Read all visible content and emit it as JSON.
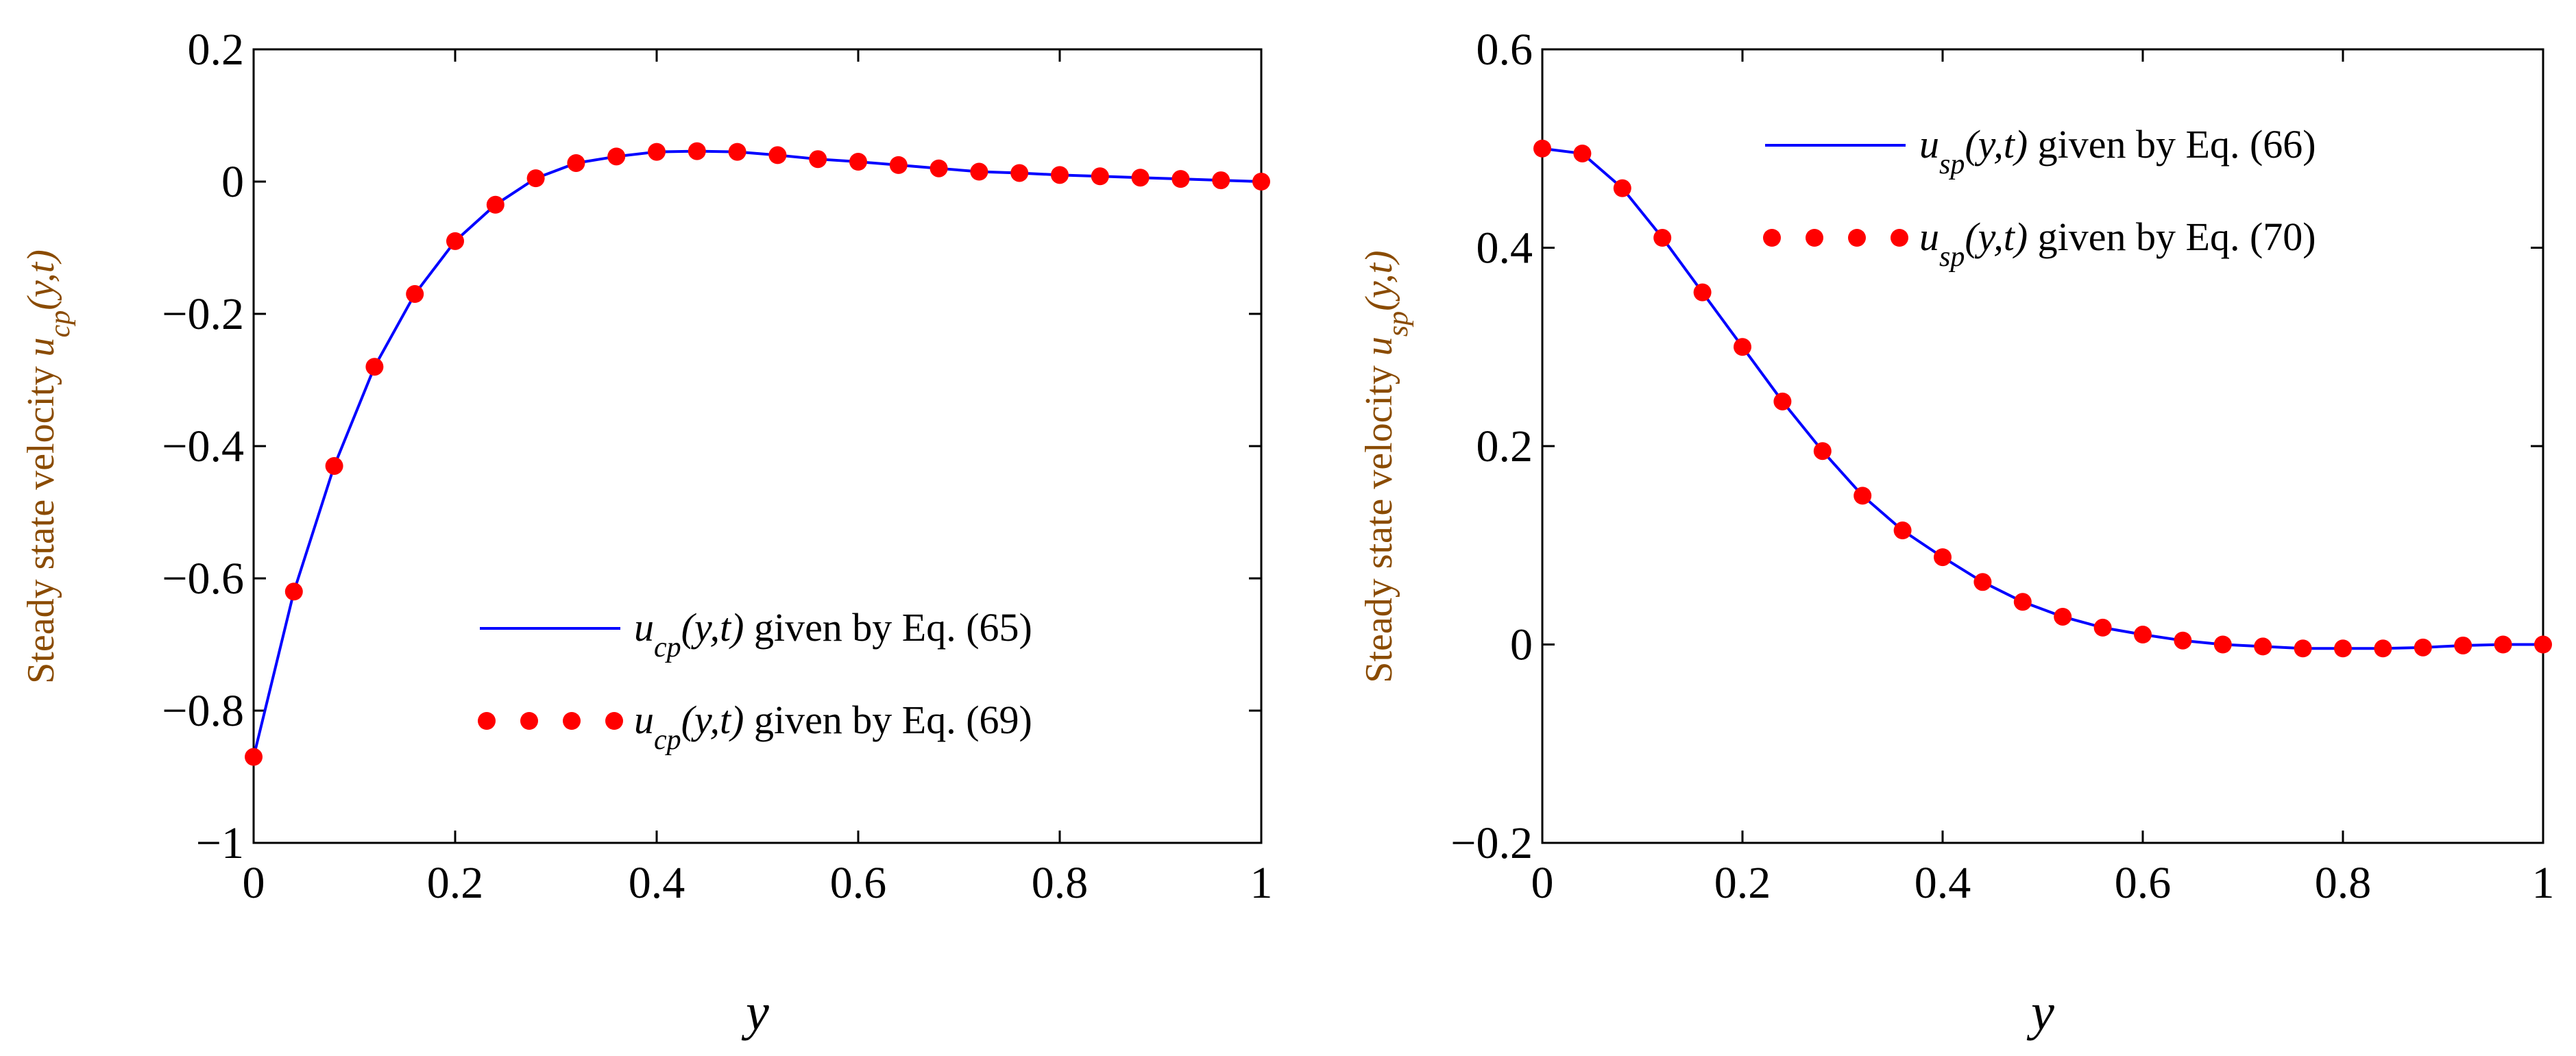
{
  "chart_data": [
    {
      "type": "line",
      "xlabel": "y",
      "ylabel": {
        "prefix": "Steady state velocity ",
        "var": "u",
        "sub": "cp",
        "args": "(y,t)"
      },
      "xlim": [
        0,
        1
      ],
      "ylim": [
        -1,
        0.2
      ],
      "xticks": [
        "0",
        "0.2",
        "0.4",
        "0.6",
        "0.8",
        "1"
      ],
      "yticks": [
        "−1",
        "−0.8",
        "−0.6",
        "−0.4",
        "−0.2",
        "0",
        "0.2"
      ],
      "legend_position": "bottom-right",
      "series": [
        {
          "name": "u_cp(y,t) given by Eq. (65)",
          "legend": {
            "var": "u",
            "sub": "cp",
            "args": "(y,t)",
            "text": " given by Eq. (65)"
          },
          "style": "line",
          "color": "#0000ff",
          "x": [
            0,
            0.04,
            0.08,
            0.12,
            0.16,
            0.2,
            0.24,
            0.28,
            0.32,
            0.36,
            0.4,
            0.44,
            0.48,
            0.52,
            0.56,
            0.6,
            0.64,
            0.68,
            0.72,
            0.76,
            0.8,
            0.84,
            0.88,
            0.92,
            0.96,
            1.0
          ],
          "values": [
            -0.87,
            -0.62,
            -0.43,
            -0.28,
            -0.17,
            -0.09,
            -0.035,
            0.005,
            0.028,
            0.038,
            0.045,
            0.046,
            0.045,
            0.04,
            0.034,
            0.03,
            0.025,
            0.02,
            0.015,
            0.013,
            0.01,
            0.008,
            0.006,
            0.004,
            0.002,
            0.0
          ]
        },
        {
          "name": "u_cp(y,t) given by Eq. (69)",
          "legend": {
            "var": "u",
            "sub": "cp",
            "args": "(y,t)",
            "text": " given by Eq. (69)"
          },
          "style": "markers",
          "color": "#ff0000",
          "x": [
            0,
            0.04,
            0.08,
            0.12,
            0.16,
            0.2,
            0.24,
            0.28,
            0.32,
            0.36,
            0.4,
            0.44,
            0.48,
            0.52,
            0.56,
            0.6,
            0.64,
            0.68,
            0.72,
            0.76,
            0.8,
            0.84,
            0.88,
            0.92,
            0.96,
            1.0
          ],
          "values": [
            -0.87,
            -0.62,
            -0.43,
            -0.28,
            -0.17,
            -0.09,
            -0.035,
            0.005,
            0.028,
            0.038,
            0.045,
            0.046,
            0.045,
            0.04,
            0.034,
            0.03,
            0.025,
            0.02,
            0.015,
            0.013,
            0.01,
            0.008,
            0.006,
            0.004,
            0.002,
            0.0
          ]
        }
      ]
    },
    {
      "type": "line",
      "xlabel": "y",
      "ylabel": {
        "prefix": "Steady state velocity ",
        "var": "u",
        "sub": "sp",
        "args": "(y,t)"
      },
      "xlim": [
        0,
        1
      ],
      "ylim": [
        -0.2,
        0.6
      ],
      "xticks": [
        "0",
        "0.2",
        "0.4",
        "0.6",
        "0.8",
        "1"
      ],
      "yticks": [
        "−0.2",
        "0",
        "0.2",
        "0.4",
        "0.6"
      ],
      "legend_position": "top-right",
      "series": [
        {
          "name": "u_sp(y,t) given by Eq. (66)",
          "legend": {
            "var": "u",
            "sub": "sp",
            "args": "(y,t)",
            "text": " given by Eq. (66)"
          },
          "style": "line",
          "color": "#0000ff",
          "x": [
            0,
            0.04,
            0.08,
            0.12,
            0.16,
            0.2,
            0.24,
            0.28,
            0.32,
            0.36,
            0.4,
            0.44,
            0.48,
            0.52,
            0.56,
            0.6,
            0.64,
            0.68,
            0.72,
            0.76,
            0.8,
            0.84,
            0.88,
            0.92,
            0.96,
            1.0
          ],
          "values": [
            0.5,
            0.495,
            0.46,
            0.41,
            0.355,
            0.3,
            0.245,
            0.195,
            0.15,
            0.115,
            0.088,
            0.063,
            0.043,
            0.028,
            0.017,
            0.01,
            0.004,
            0.0,
            -0.002,
            -0.004,
            -0.004,
            -0.004,
            -0.003,
            -0.001,
            0.0,
            0.0
          ]
        },
        {
          "name": "u_sp(y,t) given by Eq. (70)",
          "legend": {
            "var": "u",
            "sub": "sp",
            "args": "(y,t)",
            "text": " given by Eq. (70)"
          },
          "style": "markers",
          "color": "#ff0000",
          "x": [
            0,
            0.04,
            0.08,
            0.12,
            0.16,
            0.2,
            0.24,
            0.28,
            0.32,
            0.36,
            0.4,
            0.44,
            0.48,
            0.52,
            0.56,
            0.6,
            0.64,
            0.68,
            0.72,
            0.76,
            0.8,
            0.84,
            0.88,
            0.92,
            0.96,
            1.0
          ],
          "values": [
            0.5,
            0.495,
            0.46,
            0.41,
            0.355,
            0.3,
            0.245,
            0.195,
            0.15,
            0.115,
            0.088,
            0.063,
            0.043,
            0.028,
            0.017,
            0.01,
            0.004,
            0.0,
            -0.002,
            -0.004,
            -0.004,
            -0.004,
            -0.003,
            -0.001,
            0.0,
            0.0
          ]
        }
      ]
    }
  ]
}
